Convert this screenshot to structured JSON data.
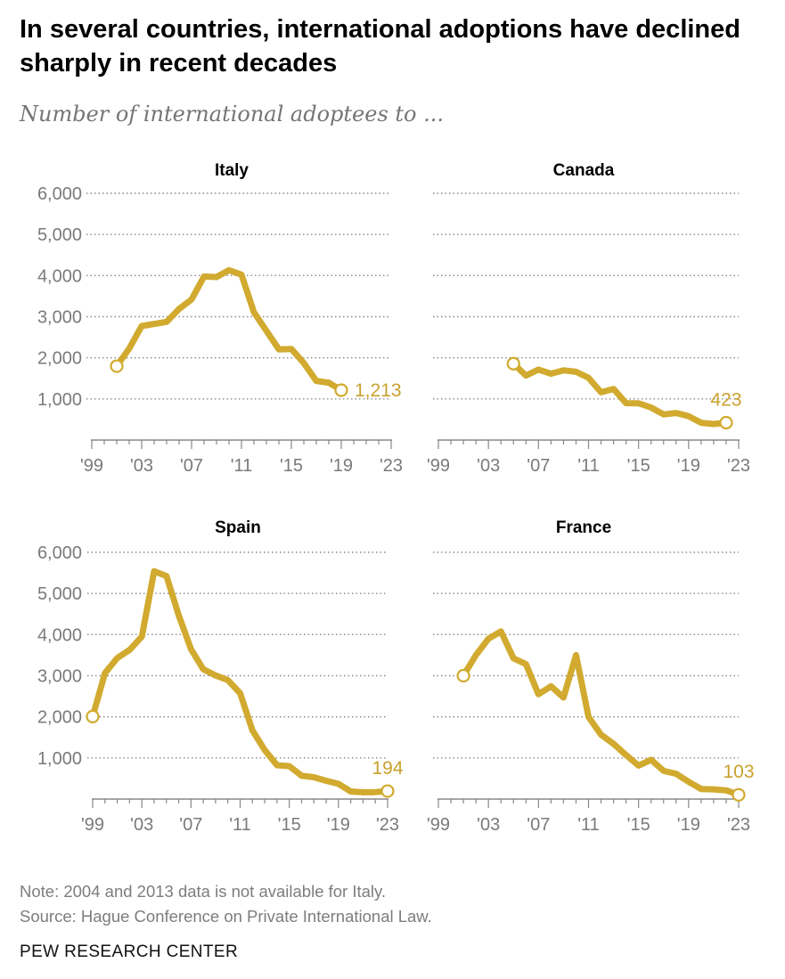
{
  "title": "In several countries, international adoptions have declined sharply in recent decades",
  "subtitle": "Number of international adoptees to ...",
  "note": "Note: 2004 and 2013 data is not available for Italy.",
  "source": "Source: Hague Conference on Private International Law.",
  "brand": "PEW RESEARCH CENTER",
  "colors": {
    "line": "#D1AA2F",
    "label": "#C9A22E",
    "grid": "#8a8a8a",
    "axis": "#888888",
    "tick_text": "#7a7a7a"
  },
  "chart_data": [
    {
      "type": "line",
      "title": "Italy",
      "xlabel": "",
      "ylabel": "",
      "ylim": [
        0,
        6000
      ],
      "xlim": [
        1999,
        2023
      ],
      "yticks": [
        1000,
        2000,
        3000,
        4000,
        5000,
        6000
      ],
      "ytick_labels": [
        "1,000",
        "2,000",
        "3,000",
        "4,000",
        "5,000",
        "6,000"
      ],
      "xticks": [
        1999,
        2003,
        2007,
        2011,
        2015,
        2019,
        2023
      ],
      "xtick_labels": [
        "'99",
        "'03",
        "'07",
        "'11",
        "'15",
        "'19",
        "'23"
      ],
      "x": [
        2001,
        2002,
        2003,
        2005,
        2006,
        2007,
        2008,
        2009,
        2010,
        2011,
        2012,
        2014,
        2015,
        2016,
        2017,
        2018,
        2019
      ],
      "y": [
        1797,
        2225,
        2772,
        2874,
        3188,
        3420,
        3977,
        3964,
        4130,
        4022,
        3106,
        2206,
        2216,
        1872,
        1439,
        1394,
        1213
      ],
      "end_label": "1,213",
      "show_y_labels": true
    },
    {
      "type": "line",
      "title": "Canada",
      "xlabel": "",
      "ylabel": "",
      "ylim": [
        0,
        6000
      ],
      "xlim": [
        1999,
        2023
      ],
      "yticks": [
        1000,
        2000,
        3000,
        4000,
        5000,
        6000
      ],
      "xticks": [
        1999,
        2003,
        2007,
        2011,
        2015,
        2019,
        2023
      ],
      "xtick_labels": [
        "'99",
        "'03",
        "'07",
        "'11",
        "'15",
        "'19",
        "'23"
      ],
      "x": [
        2005,
        2006,
        2007,
        2008,
        2009,
        2010,
        2011,
        2012,
        2013,
        2014,
        2015,
        2016,
        2017,
        2018,
        2019,
        2020,
        2021,
        2022
      ],
      "y": [
        1858,
        1568,
        1713,
        1614,
        1695,
        1660,
        1514,
        1162,
        1243,
        897,
        895,
        790,
        624,
        658,
        580,
        420,
        390,
        423
      ],
      "end_label": "423",
      "show_y_labels": false
    },
    {
      "type": "line",
      "title": "Spain",
      "xlabel": "",
      "ylabel": "",
      "ylim": [
        0,
        6000
      ],
      "xlim": [
        1999,
        2023
      ],
      "yticks": [
        1000,
        2000,
        3000,
        4000,
        5000,
        6000
      ],
      "ytick_labels": [
        "1,000",
        "2,000",
        "3,000",
        "4,000",
        "5,000",
        "6,000"
      ],
      "xticks": [
        1999,
        2003,
        2007,
        2011,
        2015,
        2019,
        2023
      ],
      "xtick_labels": [
        "'99",
        "'03",
        "'07",
        "'11",
        "'15",
        "'19",
        "'23"
      ],
      "x": [
        1999,
        2000,
        2001,
        2002,
        2003,
        2004,
        2005,
        2006,
        2007,
        2008,
        2009,
        2010,
        2011,
        2012,
        2013,
        2014,
        2015,
        2016,
        2017,
        2018,
        2019,
        2020,
        2021,
        2022,
        2023
      ],
      "y": [
        2006,
        3062,
        3428,
        3625,
        3951,
        5541,
        5423,
        4472,
        3648,
        3156,
        3006,
        2891,
        2573,
        1669,
        1191,
        824,
        799,
        567,
        531,
        444,
        370,
        185,
        165,
        170,
        194
      ],
      "end_label": "194",
      "show_y_labels": true
    },
    {
      "type": "line",
      "title": "France",
      "xlabel": "",
      "ylabel": "",
      "ylim": [
        0,
        6000
      ],
      "xlim": [
        1999,
        2023
      ],
      "yticks": [
        1000,
        2000,
        3000,
        4000,
        5000,
        6000
      ],
      "xticks": [
        1999,
        2003,
        2007,
        2011,
        2015,
        2019,
        2023
      ],
      "xtick_labels": [
        "'99",
        "'03",
        "'07",
        "'11",
        "'15",
        "'19",
        "'23"
      ],
      "x": [
        2001,
        2002,
        2003,
        2004,
        2005,
        2006,
        2007,
        2008,
        2009,
        2010,
        2011,
        2012,
        2013,
        2014,
        2015,
        2016,
        2017,
        2018,
        2019,
        2020,
        2021,
        2022,
        2023
      ],
      "y": [
        3000,
        3500,
        3900,
        4076,
        3422,
        3280,
        2550,
        2742,
        2469,
        3500,
        2000,
        1567,
        1343,
        1069,
        815,
        956,
        685,
        615,
        421,
        244,
        237,
        212,
        103
      ],
      "end_label": "103",
      "show_y_labels": false
    }
  ]
}
